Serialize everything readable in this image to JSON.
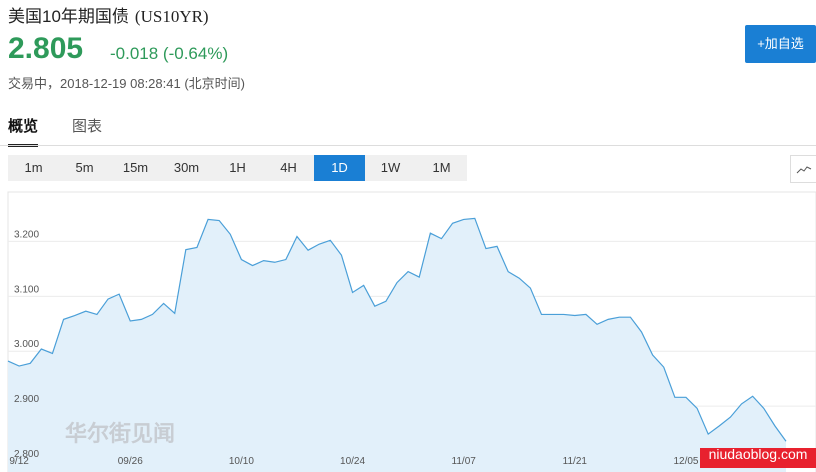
{
  "header": {
    "title": "美国10年期国债",
    "symbol": "(US10YR)",
    "price": "2.805",
    "change": "-0.018 (-0.64%)",
    "status": "交易中，2018-12-19 08:28:41 (北京时间)",
    "button": "+加自选"
  },
  "tabs": [
    "概览",
    "图表"
  ],
  "timeframes": [
    "1m",
    "5m",
    "15m",
    "30m",
    "1H",
    "4H",
    "1D",
    "1W",
    "1M"
  ],
  "watermarks": [
    "华尔街见闻",
    "niudaoblog.com"
  ],
  "chart_data": {
    "type": "area",
    "color": "#4a9fd8",
    "fill": "#e2f0fa",
    "grid": true,
    "categories": [
      null,
      "9/12",
      null,
      null,
      null,
      null,
      null,
      null,
      null,
      null,
      null,
      "09/26",
      null,
      null,
      null,
      null,
      null,
      null,
      null,
      null,
      null,
      "10/10",
      null,
      null,
      null,
      null,
      null,
      null,
      null,
      null,
      null,
      "10/24",
      null,
      null,
      null,
      null,
      null,
      null,
      null,
      null,
      null,
      "11/07",
      null,
      null,
      null,
      null,
      null,
      null,
      null,
      null,
      null,
      "11/21",
      null,
      null,
      null,
      null,
      null,
      null,
      null,
      null,
      null,
      "12/05",
      null,
      null,
      null,
      null,
      null,
      null,
      null,
      null,
      null
    ],
    "values": [
      2.982,
      2.973,
      2.978,
      3.004,
      2.996,
      3.058,
      3.065,
      3.073,
      3.067,
      3.095,
      3.104,
      3.055,
      3.058,
      3.067,
      3.087,
      3.069,
      3.185,
      3.189,
      3.24,
      3.238,
      3.213,
      3.167,
      3.156,
      3.165,
      3.162,
      3.167,
      3.209,
      3.184,
      3.195,
      3.202,
      3.175,
      3.107,
      3.12,
      3.082,
      3.091,
      3.125,
      3.145,
      3.135,
      3.215,
      3.205,
      3.233,
      3.24,
      3.242,
      3.187,
      3.191,
      3.145,
      3.133,
      3.115,
      3.067,
      3.067,
      3.067,
      3.065,
      3.067,
      3.049,
      3.058,
      3.062,
      3.062,
      3.035,
      2.993,
      2.971,
      2.916,
      2.916,
      2.896,
      2.849,
      2.864,
      2.88,
      2.904,
      2.918,
      2.896,
      2.864,
      2.836
    ],
    "ylim": [
      2.78,
      3.29
    ],
    "yticks": [
      {
        "value": 2.8,
        "label": "2.800"
      },
      {
        "value": 2.9,
        "label": "2.900"
      },
      {
        "value": 3.0,
        "label": "3.000"
      },
      {
        "value": 3.1,
        "label": "3.100"
      },
      {
        "value": 3.2,
        "label": "3.200"
      }
    ]
  }
}
